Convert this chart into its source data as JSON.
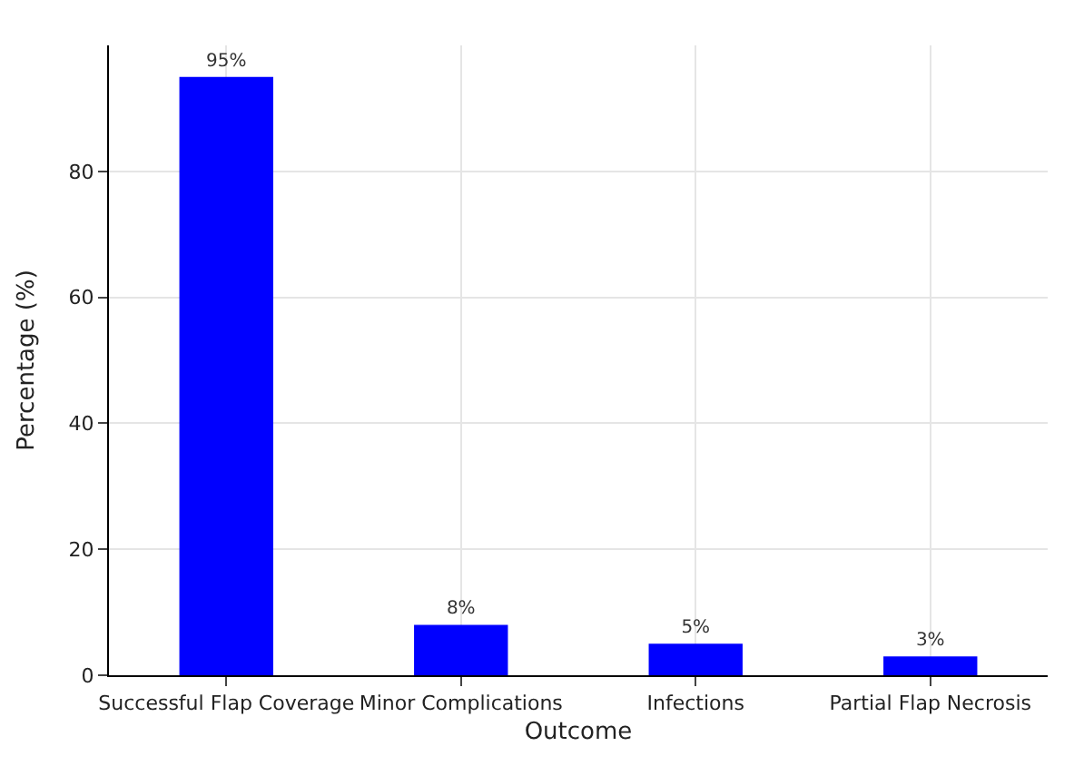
{
  "chart_data": {
    "type": "bar",
    "xlabel": "Outcome",
    "ylabel": "Percentage (%)",
    "categories": [
      "Successful Flap Coverage",
      "Minor Complications",
      "Infections",
      "Partial Flap Necrosis"
    ],
    "values": [
      95,
      8,
      5,
      3
    ],
    "color": "#0000ff",
    "value_labels": [
      "95%",
      "8%",
      "5%",
      "3%"
    ],
    "ylim": [
      0,
      100
    ],
    "yticks": [
      0,
      20,
      40,
      60,
      80
    ],
    "grid": true
  }
}
